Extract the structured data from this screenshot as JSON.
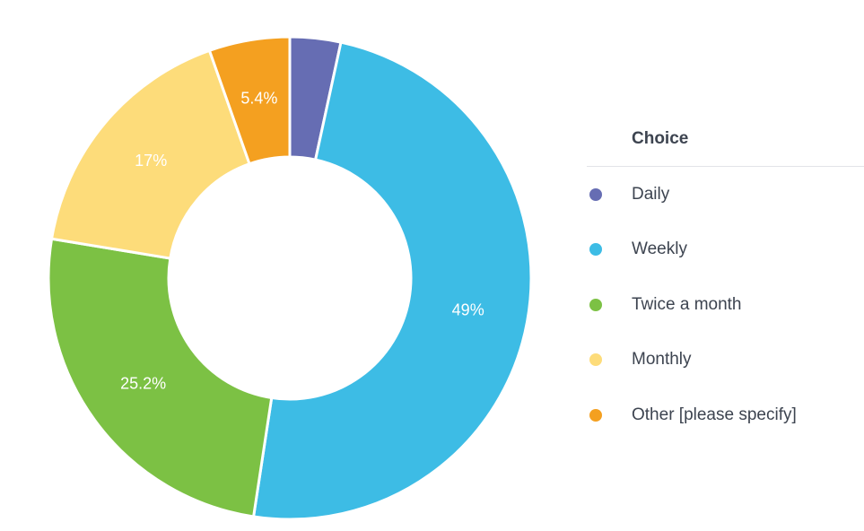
{
  "chart_data": {
    "type": "pie",
    "legend_title": "Choice",
    "legend_position": "right",
    "categories": [
      "Daily",
      "Weekly",
      "Twice a month",
      "Monthly",
      "Other [please specify]"
    ],
    "values": [
      3.4,
      49.0,
      25.2,
      17.0,
      5.4
    ],
    "value_labels": [
      "",
      "49%",
      "25.2%",
      "17%",
      "5.4%"
    ],
    "colors": [
      "#666db3",
      "#3dbce5",
      "#7cc144",
      "#fddc7a",
      "#f4a020"
    ],
    "donut": true
  }
}
